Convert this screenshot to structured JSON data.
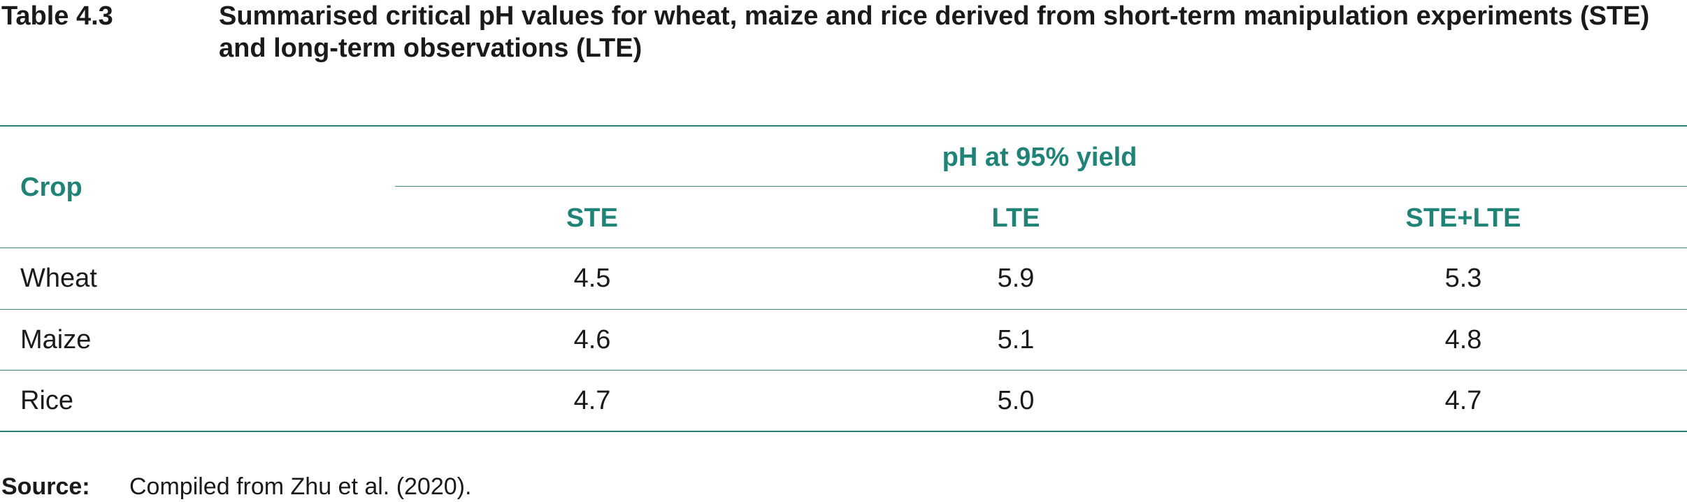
{
  "caption": {
    "label": "Table 4.3",
    "title": "Summarised critical pH values for wheat, maize and rice derived from short-term manipulation experiments (STE) and long-term observations (LTE)"
  },
  "table": {
    "row_header": "Crop",
    "group_header": "pH at 95% yield",
    "columns": [
      "STE",
      "LTE",
      "STE+LTE"
    ],
    "rows": [
      {
        "crop": "Wheat",
        "values": [
          "4.5",
          "5.9",
          "5.3"
        ]
      },
      {
        "crop": "Maize",
        "values": [
          "4.6",
          "5.1",
          "4.8"
        ]
      },
      {
        "crop": "Rice",
        "values": [
          "4.7",
          "5.0",
          "4.7"
        ]
      }
    ]
  },
  "source": {
    "label": "Source:",
    "text": "Compiled from Zhu et al. (2020)."
  },
  "colors": {
    "accent": "#1f8477",
    "rule": "#2a7d74",
    "text": "#1a1a1a"
  }
}
